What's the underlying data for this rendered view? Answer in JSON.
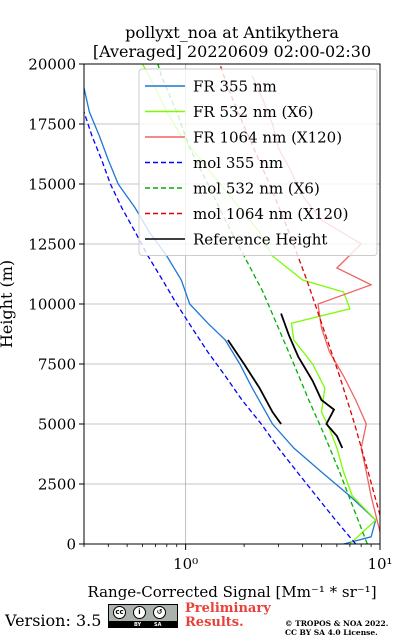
{
  "chart_data": {
    "type": "line",
    "title_line1": "pollyxt_noa at Antikythera",
    "title_line2": "[Averaged] 20220609 02:00-02:30",
    "xlabel": "Range-Corrected Signal [Mm⁻¹ * sr⁻¹]",
    "ylabel": "Height (m)",
    "xscale": "log",
    "xlim": [
      0.3,
      10
    ],
    "ylim": [
      0,
      20000
    ],
    "yticks": [
      "0",
      "2500",
      "5000",
      "7500",
      "10000",
      "12500",
      "15000",
      "17500",
      "20000"
    ],
    "xticks": [
      "10⁰",
      "10¹"
    ],
    "grid": true,
    "legend_position": "upper-right",
    "legend": [
      {
        "label": "FR 355 nm",
        "color": "#1f77d4",
        "style": "solid"
      },
      {
        "label": "FR 532 nm (X6)",
        "color": "#7cfc00",
        "style": "solid"
      },
      {
        "label": "FR 1064 nm (X120)",
        "color": "#f06262",
        "style": "solid"
      },
      {
        "label": "mol 355 nm",
        "color": "#0000ff",
        "style": "dashed"
      },
      {
        "label": "mol 532 nm (X6)",
        "color": "#00b000",
        "style": "dashed"
      },
      {
        "label": "mol 1064 nm (X120)",
        "color": "#e00000",
        "style": "dashed"
      },
      {
        "label": "Reference Height",
        "color": "#000000",
        "style": "solid"
      }
    ],
    "series": [
      {
        "name": "FR 355 nm",
        "color": "#1f77d4",
        "style": "solid",
        "points": [
          [
            6.5,
            0
          ],
          [
            9,
            300
          ],
          [
            9.5,
            1000
          ],
          [
            7,
            2000
          ],
          [
            5,
            3000
          ],
          [
            3.6,
            4000
          ],
          [
            2.8,
            5000
          ],
          [
            2.2,
            6500
          ],
          [
            1.9,
            7500
          ],
          [
            1.6,
            8500
          ],
          [
            1.3,
            9200
          ],
          [
            1.05,
            10000
          ],
          [
            0.95,
            11000
          ],
          [
            0.8,
            12000
          ],
          [
            0.65,
            13000
          ],
          [
            0.55,
            14000
          ],
          [
            0.45,
            15000
          ],
          [
            0.4,
            16000
          ],
          [
            0.36,
            17000
          ],
          [
            0.32,
            18000
          ],
          [
            0.3,
            19000
          ]
        ]
      },
      {
        "name": "FR 532 nm (X6)",
        "color": "#7cfc00",
        "style": "solid",
        "points": [
          [
            7,
            0
          ],
          [
            9.5,
            1000
          ],
          [
            7.2,
            2000
          ],
          [
            6.5,
            3000
          ],
          [
            6,
            4000
          ],
          [
            5.5,
            4800
          ],
          [
            5,
            5500
          ],
          [
            5.2,
            6500
          ],
          [
            4.5,
            7500
          ],
          [
            3.6,
            8500
          ],
          [
            3.5,
            9200
          ],
          [
            7,
            9800
          ],
          [
            6.5,
            10500
          ],
          [
            4,
            11000
          ],
          [
            2.8,
            12000
          ],
          [
            2.4,
            13000
          ],
          [
            1.9,
            14000
          ],
          [
            1.5,
            15000
          ],
          [
            1.2,
            16000
          ],
          [
            0.95,
            17000
          ],
          [
            0.8,
            18000
          ],
          [
            0.7,
            19000
          ],
          [
            0.6,
            20000
          ]
        ]
      },
      {
        "name": "FR 1064 nm (X120)",
        "color": "#f06262",
        "style": "solid",
        "points": [
          [
            10,
            500
          ],
          [
            9,
            2000
          ],
          [
            8.5,
            3000
          ],
          [
            8,
            4000
          ],
          [
            8.5,
            5000
          ],
          [
            7.5,
            6000
          ],
          [
            6.5,
            7000
          ],
          [
            5.5,
            8000
          ],
          [
            5,
            9000
          ],
          [
            4.8,
            10000
          ],
          [
            9,
            10800
          ],
          [
            6,
            11500
          ],
          [
            8,
            12500
          ],
          [
            5,
            13500
          ],
          [
            4,
            14500
          ],
          [
            3.5,
            15500
          ],
          [
            3,
            16500
          ],
          [
            2.8,
            17500
          ],
          [
            2.5,
            18500
          ],
          [
            2.2,
            19500
          ]
        ]
      },
      {
        "name": "mol 355 nm",
        "color": "#0000ff",
        "style": "dashed",
        "points": [
          [
            7.5,
            0
          ],
          [
            5.9,
            1000
          ],
          [
            4.7,
            2000
          ],
          [
            3.75,
            3000
          ],
          [
            3.0,
            4000
          ],
          [
            2.45,
            5000
          ],
          [
            1.95,
            6000
          ],
          [
            1.6,
            7000
          ],
          [
            1.3,
            8000
          ],
          [
            1.08,
            9000
          ],
          [
            0.9,
            10000
          ],
          [
            0.76,
            11000
          ],
          [
            0.64,
            12000
          ],
          [
            0.55,
            13000
          ],
          [
            0.47,
            14000
          ],
          [
            0.41,
            15000
          ],
          [
            0.37,
            16000
          ],
          [
            0.33,
            17000
          ],
          [
            0.3,
            18000
          ]
        ]
      },
      {
        "name": "mol 532 nm (X6)",
        "color": "#00b000",
        "style": "dashed",
        "points": [
          [
            8.6,
            0
          ],
          [
            7.3,
            1500
          ],
          [
            6.2,
            3000
          ],
          [
            5.2,
            4500
          ],
          [
            4.3,
            6000
          ],
          [
            3.6,
            7500
          ],
          [
            3.0,
            9000
          ],
          [
            2.5,
            10500
          ],
          [
            2.0,
            12000
          ],
          [
            1.6,
            13500
          ],
          [
            1.3,
            15000
          ],
          [
            1.05,
            16500
          ],
          [
            0.9,
            18000
          ],
          [
            0.75,
            19500
          ],
          [
            0.72,
            20000
          ]
        ]
      },
      {
        "name": "mol 1064 nm (X120)",
        "color": "#e00000",
        "style": "dashed",
        "points": [
          [
            10,
            1200
          ],
          [
            8.7,
            3000
          ],
          [
            7.4,
            5000
          ],
          [
            6.2,
            7000
          ],
          [
            5.1,
            9000
          ],
          [
            4.2,
            11000
          ],
          [
            3.4,
            13000
          ],
          [
            2.7,
            15000
          ],
          [
            2.1,
            17000
          ],
          [
            1.65,
            19000
          ],
          [
            1.5,
            20000
          ]
        ]
      },
      {
        "name": "Reference Height",
        "color": "#000000",
        "style": "solid",
        "points": [
          [
            1.65,
            8500
          ],
          [
            2.0,
            7500
          ],
          [
            2.4,
            6500
          ],
          [
            2.8,
            5500
          ],
          [
            3.1,
            5000
          ]
        ]
      },
      {
        "name": "Reference Height",
        "color": "#000000",
        "style": "solid",
        "points": [
          [
            3.1,
            9600
          ],
          [
            3.4,
            8700
          ],
          [
            3.8,
            7800
          ],
          [
            4.5,
            6800
          ],
          [
            5.0,
            6000
          ],
          [
            5.8,
            5600
          ],
          [
            5.3,
            5000
          ],
          [
            6.0,
            4500
          ],
          [
            6.4,
            4000
          ]
        ]
      }
    ]
  },
  "footer": {
    "version": "Version: 3.5",
    "cc_labels": [
      "BY",
      "SA"
    ],
    "preliminary_line1": "Preliminary",
    "preliminary_line2": "Results.",
    "copyright_line1": "© TROPOS & NOA 2022.",
    "copyright_line2": "CC BY SA 4.0 License."
  }
}
